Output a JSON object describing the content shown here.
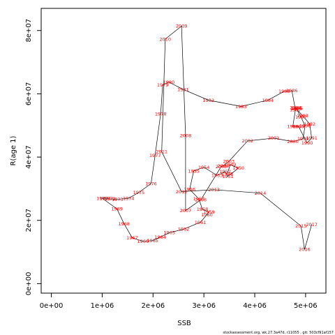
{
  "chart_data": {
    "type": "line",
    "xlabel": "SSB",
    "ylabel": "R(age 1)",
    "xlim": [
      -200000,
      5400000
    ],
    "ylim": [
      -3000000,
      87000000
    ],
    "x_ticks": [
      {
        "value": 0,
        "label": "0e+00"
      },
      {
        "value": 1000000,
        "label": "1e+06"
      },
      {
        "value": 2000000,
        "label": "2e+06"
      },
      {
        "value": 3000000,
        "label": "3e+06"
      },
      {
        "value": 4000000,
        "label": "4e+06"
      },
      {
        "value": 5000000,
        "label": "5e+06"
      }
    ],
    "y_ticks": [
      {
        "value": 0,
        "label": "0e+00"
      },
      {
        "value": 20000000,
        "label": "2e+07"
      },
      {
        "value": 40000000,
        "label": "4e+07"
      },
      {
        "value": 60000000,
        "label": "6e+07"
      },
      {
        "value": 80000000,
        "label": "8e+07"
      }
    ],
    "line_color": "#000000",
    "label_color": "#ff0000",
    "points": [
      {
        "label": "1948",
        "x": 3460000,
        "y": 34700000
      },
      {
        "label": "1949",
        "x": 3520000,
        "y": 37600000
      },
      {
        "label": "1950",
        "x": 3680000,
        "y": 36500000
      },
      {
        "label": "1951",
        "x": 3470000,
        "y": 33900000
      },
      {
        "label": "1952",
        "x": 3420000,
        "y": 35400000
      },
      {
        "label": "1953",
        "x": 3260000,
        "y": 34200000
      },
      {
        "label": "1954",
        "x": 3000000,
        "y": 36800000
      },
      {
        "label": "1955",
        "x": 2800000,
        "y": 35600000
      },
      {
        "label": "1956",
        "x": 2720000,
        "y": 29800000
      },
      {
        "label": "1957",
        "x": 2900000,
        "y": 26800000
      },
      {
        "label": "1958",
        "x": 2970000,
        "y": 23500000
      },
      {
        "label": "1959",
        "x": 3100000,
        "y": 22600000
      },
      {
        "label": "1960",
        "x": 3060000,
        "y": 21800000
      },
      {
        "label": "1961",
        "x": 2930000,
        "y": 19400000
      },
      {
        "label": "1962",
        "x": 2600000,
        "y": 17200000
      },
      {
        "label": "1963",
        "x": 2320000,
        "y": 16100000
      },
      {
        "label": "1964",
        "x": 2140000,
        "y": 14700000
      },
      {
        "label": "1965",
        "x": 1990000,
        "y": 13600000
      },
      {
        "label": "1966",
        "x": 1800000,
        "y": 13400000
      },
      {
        "label": "1967",
        "x": 1590000,
        "y": 14500000
      },
      {
        "label": "1968",
        "x": 1430000,
        "y": 18900000
      },
      {
        "label": "1969",
        "x": 1290000,
        "y": 23600000
      },
      {
        "label": "1970",
        "x": 1000000,
        "y": 27000000
      },
      {
        "label": "1971",
        "x": 1060000,
        "y": 27000000
      },
      {
        "label": "1972",
        "x": 1150000,
        "y": 26800000
      },
      {
        "label": "1973",
        "x": 1300000,
        "y": 26600000
      },
      {
        "label": "1974",
        "x": 1520000,
        "y": 27000000
      },
      {
        "label": "1975",
        "x": 1720000,
        "y": 28800000
      },
      {
        "label": "1976",
        "x": 1960000,
        "y": 31600000
      },
      {
        "label": "1977",
        "x": 2040000,
        "y": 40500000
      },
      {
        "label": "1978",
        "x": 2150000,
        "y": 53700000
      },
      {
        "label": "1979",
        "x": 2190000,
        "y": 62800000
      },
      {
        "label": "1980",
        "x": 2310000,
        "y": 63700000
      },
      {
        "label": "1981",
        "x": 2590000,
        "y": 61400000
      },
      {
        "label": "1982",
        "x": 3090000,
        "y": 58000000
      },
      {
        "label": "1983",
        "x": 3730000,
        "y": 56000000
      },
      {
        "label": "1984",
        "x": 4260000,
        "y": 58000000
      },
      {
        "label": "1985",
        "x": 4580000,
        "y": 60800000
      },
      {
        "label": "1986",
        "x": 4730000,
        "y": 61000000
      },
      {
        "label": "1987",
        "x": 4800000,
        "y": 55000000
      },
      {
        "label": "1988",
        "x": 4750000,
        "y": 49700000
      },
      {
        "label": "1989",
        "x": 4860000,
        "y": 49700000
      },
      {
        "label": "1990",
        "x": 5030000,
        "y": 44500000
      },
      {
        "label": "1991",
        "x": 5120000,
        "y": 46000000
      },
      {
        "label": "1992",
        "x": 5080000,
        "y": 50500000
      },
      {
        "label": "1993",
        "x": 4940000,
        "y": 53100000
      },
      {
        "label": "1994",
        "x": 4800000,
        "y": 55600000
      },
      {
        "label": "1995",
        "x": 4830000,
        "y": 55500000
      },
      {
        "label": "1996",
        "x": 4820000,
        "y": 55300000
      },
      {
        "label": "1997",
        "x": 4910000,
        "y": 52600000
      },
      {
        "label": "1998",
        "x": 4990000,
        "y": 49900000
      },
      {
        "label": "1999",
        "x": 4950000,
        "y": 45800000
      },
      {
        "label": "2000",
        "x": 4750000,
        "y": 44900000
      },
      {
        "label": "2001",
        "x": 4370000,
        "y": 46000000
      },
      {
        "label": "2002",
        "x": 3860000,
        "y": 45100000
      },
      {
        "label": "2003",
        "x": 3490000,
        "y": 38600000
      },
      {
        "label": "2004",
        "x": 3380000,
        "y": 37200000
      },
      {
        "label": "2005",
        "x": 3340000,
        "y": 37000000
      },
      {
        "label": "2006",
        "x": 2940000,
        "y": 26500000
      },
      {
        "label": "2007",
        "x": 2640000,
        "y": 23100000
      },
      {
        "label": "2008",
        "x": 2640000,
        "y": 46800000
      },
      {
        "label": "2009",
        "x": 2560000,
        "y": 81400000
      },
      {
        "label": "2010",
        "x": 2240000,
        "y": 77300000
      },
      {
        "label": "2011",
        "x": 2170000,
        "y": 41700000
      },
      {
        "label": "2012",
        "x": 2560000,
        "y": 29100000
      },
      {
        "label": "2013",
        "x": 3200000,
        "y": 29700000
      },
      {
        "label": "2014",
        "x": 4110000,
        "y": 28600000
      },
      {
        "label": "2015",
        "x": 4910000,
        "y": 18200000
      },
      {
        "label": "2016",
        "x": 4980000,
        "y": 10800000
      },
      {
        "label": "2017",
        "x": 5120000,
        "y": 18700000
      }
    ]
  },
  "footer_text": "stockassessment.org, wk.27.3a47d, r11055 , git: 503cf91af157"
}
